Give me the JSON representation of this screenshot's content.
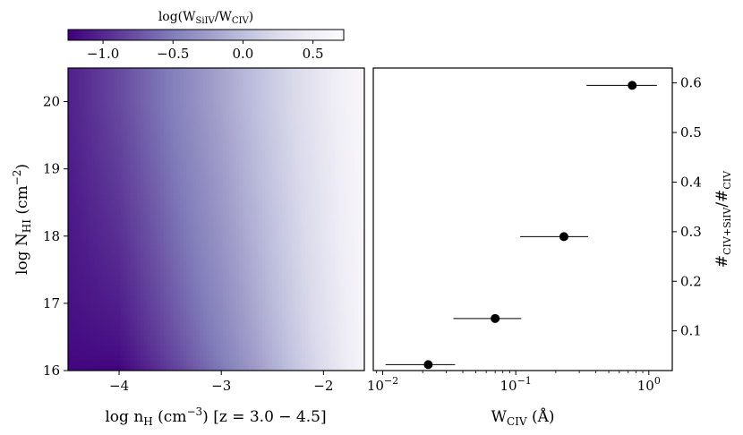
{
  "chart_data": [
    {
      "type": "heatmap",
      "xlabel": "log n",
      "xlabel_sub": "H",
      "xlabel_unit": " (cm",
      "xlabel_unit_sup": "−3",
      "xlabel_unit_close": ")",
      "xlabel_range": "[z = 3.0 − 4.5]",
      "ylabel": "log N",
      "ylabel_sub": "HI",
      "ylabel_unit": " (cm",
      "ylabel_unit_sup": "−2",
      "ylabel_unit_close": ")",
      "xlim": [
        -4.5,
        -1.6
      ],
      "ylim": [
        16.0,
        20.5
      ],
      "xticks": [
        -4,
        -3,
        -2
      ],
      "xtick_labels": [
        "−4",
        "−3",
        "−2"
      ],
      "yticks": [
        16,
        17,
        18,
        19,
        20
      ],
      "ytick_labels": [
        "16",
        "17",
        "18",
        "19",
        "20"
      ],
      "colorbar": {
        "label_pre": "log(W",
        "label_sub1": "SiIV",
        "label_mid": "/W",
        "label_sub2": "CIV",
        "label_post": ")",
        "range": [
          -1.25,
          0.72
        ],
        "ticks": [
          -1.0,
          -0.5,
          0.0,
          0.5
        ],
        "tick_labels": [
          "−1.0",
          "−0.5",
          "0.0",
          "0.5"
        ],
        "colormap": "Purples_r",
        "colors": [
          "#3f007d",
          "#54278f",
          "#6a51a3",
          "#807dba",
          "#9e9ac8",
          "#bcbddc",
          "#dadaeb",
          "#efedf5",
          "#fcfbfd"
        ]
      },
      "z_model": {
        "description_at_logNHI_16": [
          [
            -4.5,
            -1.22
          ],
          [
            -4.0,
            -1.25
          ],
          [
            -3.0,
            -0.55
          ],
          [
            -2.0,
            0.25
          ],
          [
            -1.6,
            0.6
          ]
        ],
        "description_at_logNHI_20": [
          [
            -4.5,
            -1.05
          ],
          [
            -4.0,
            -0.8
          ],
          [
            -3.0,
            -0.2
          ],
          [
            -2.0,
            0.4
          ],
          [
            -1.6,
            0.65
          ]
        ]
      }
    },
    {
      "type": "scatter",
      "xlabel": "W",
      "xlabel_sub": "CIV",
      "xlabel_unit": " (Å)",
      "ylabel": "#",
      "ylabel_sub1": "CIV+SiIV",
      "ylabel_mid": "/#",
      "ylabel_sub2": "CIV",
      "xscale": "log",
      "xlim": [
        0.0085,
        1.5
      ],
      "ylim": [
        0.02,
        0.63
      ],
      "xticks": [
        0.01,
        0.1,
        1
      ],
      "xtick_labels": [
        "10",
        "10",
        "10"
      ],
      "xtick_exponents": [
        "−2",
        "−1",
        "0"
      ],
      "yticks": [
        0.1,
        0.2,
        0.3,
        0.4,
        0.5,
        0.6
      ],
      "ytick_labels": [
        "0.1",
        "0.2",
        "0.3",
        "0.4",
        "0.5",
        "0.6"
      ],
      "points": [
        {
          "x": 0.022,
          "y": 0.032,
          "xerr": [
            0.0105,
            0.035
          ]
        },
        {
          "x": 0.07,
          "y": 0.125,
          "xerr": [
            0.034,
            0.11
          ]
        },
        {
          "x": 0.23,
          "y": 0.29,
          "xerr": [
            0.108,
            0.35
          ]
        },
        {
          "x": 0.75,
          "y": 0.595,
          "xerr": [
            0.34,
            1.15
          ]
        }
      ]
    }
  ]
}
